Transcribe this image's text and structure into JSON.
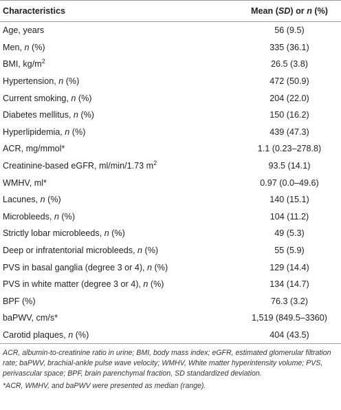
{
  "table": {
    "header": [
      [
        "Characteristics"
      ],
      [
        "Mean (",
        {
          "text": "SD",
          "style": "italic"
        },
        ") or ",
        {
          "text": "n",
          "style": "italic"
        },
        " (%)"
      ]
    ],
    "rows": [
      {
        "label": [
          "Age, years"
        ],
        "value": "56 (9.5)"
      },
      {
        "label": [
          "Men, ",
          {
            "text": "n",
            "style": "italic"
          },
          " (%)"
        ],
        "value": "335 (36.1)"
      },
      {
        "label": [
          "BMI, kg/m",
          {
            "text": "2",
            "style": "sup"
          }
        ],
        "value": "26.5 (3.8)"
      },
      {
        "label": [
          "Hypertension, ",
          {
            "text": "n",
            "style": "italic"
          },
          " (%)"
        ],
        "value": "472 (50.9)"
      },
      {
        "label": [
          "Current smoking, ",
          {
            "text": "n",
            "style": "italic"
          },
          " (%)"
        ],
        "value": "204 (22.0)"
      },
      {
        "label": [
          "Diabetes mellitus, ",
          {
            "text": "n",
            "style": "italic"
          },
          " (%)"
        ],
        "value": "150 (16.2)"
      },
      {
        "label": [
          "Hyperlipidemia, ",
          {
            "text": "n",
            "style": "italic"
          },
          " (%)"
        ],
        "value": "439 (47.3)"
      },
      {
        "label": [
          "ACR, mg/mmol*"
        ],
        "value": "1.1 (0.23–278.8)"
      },
      {
        "label": [
          "Creatinine-based eGFR, ml/min/1.73 m",
          {
            "text": "2",
            "style": "sup"
          }
        ],
        "value": "93.5 (14.1)"
      },
      {
        "label": [
          "WMHV, ml*"
        ],
        "value": "0.97 (0.0–49.6)"
      },
      {
        "label": [
          "Lacunes, ",
          {
            "text": "n",
            "style": "italic"
          },
          " (%)"
        ],
        "value": "140 (15.1)"
      },
      {
        "label": [
          "Microbleeds, ",
          {
            "text": "n",
            "style": "italic"
          },
          " (%)"
        ],
        "value": "104 (11.2)"
      },
      {
        "label": [
          "Strictly lobar microbleeds, ",
          {
            "text": "n",
            "style": "italic"
          },
          " (%)"
        ],
        "value": "49 (5.3)"
      },
      {
        "label": [
          "Deep or infratentorial microbleeds, ",
          {
            "text": "n",
            "style": "italic"
          },
          " (%)"
        ],
        "value": "55 (5.9)"
      },
      {
        "label": [
          "PVS in basal ganglia (degree 3 or 4), ",
          {
            "text": "n",
            "style": "italic"
          },
          " (%)"
        ],
        "value": "129 (14.4)"
      },
      {
        "label": [
          "PVS in white matter (degree 3 or 4), ",
          {
            "text": "n",
            "style": "italic"
          },
          " (%)"
        ],
        "value": "134 (14.7)"
      },
      {
        "label": [
          "BPF (%)"
        ],
        "value": "76.3 (3.2)"
      },
      {
        "label": [
          "baPWV, cm/s*"
        ],
        "value": "1,519 (849.5–3360)"
      },
      {
        "label": [
          "Carotid plaques, ",
          {
            "text": "n",
            "style": "italic"
          },
          " (%)"
        ],
        "value": "404 (43.5)"
      }
    ],
    "footnotes": [
      "ACR, albumin-to-creatinine ratio in urine; BMI, body mass index; eGFR, estimated glomerular filtration rate; baPWV, brachial-ankle pulse wave velocity; WMHV, White matter hyperintensity volume; PVS, perivascular space; BPF, brain parenchymal fraction, SD standardized deviation.",
      "*ACR, WMHV, and baPWV were presented as median (range)."
    ]
  }
}
